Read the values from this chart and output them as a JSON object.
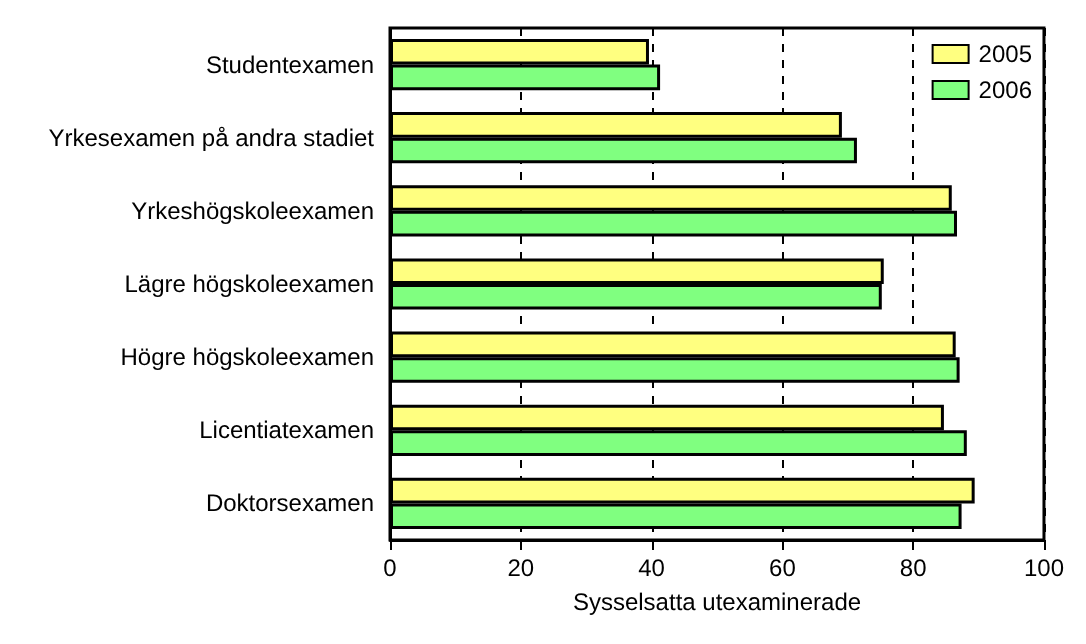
{
  "chart_data": {
    "type": "bar",
    "orientation": "horizontal",
    "xlabel": "Sysselsatta utexaminerade",
    "categories": [
      "Studentexamen",
      "Yrkesexamen på andra stadiet",
      "Yrkeshögskoleexamen",
      "Lägre högskoleexamen",
      "Högre högskoleexamen",
      "Licentiatexamen",
      "Doktorsexamen"
    ],
    "series": [
      {
        "name": "2005",
        "color": "#ffff80",
        "values": [
          39.6,
          69.1,
          85.9,
          75.5,
          86.5,
          84.7,
          89.4
        ]
      },
      {
        "name": "2006",
        "color": "#80ff80",
        "values": [
          41.3,
          71.4,
          86.7,
          75.2,
          87.1,
          88.2,
          87.4
        ]
      }
    ],
    "xlim": [
      0,
      100
    ],
    "xticks": [
      0,
      20,
      40,
      60,
      80,
      100
    ],
    "grid": "x",
    "legend": "top right"
  }
}
